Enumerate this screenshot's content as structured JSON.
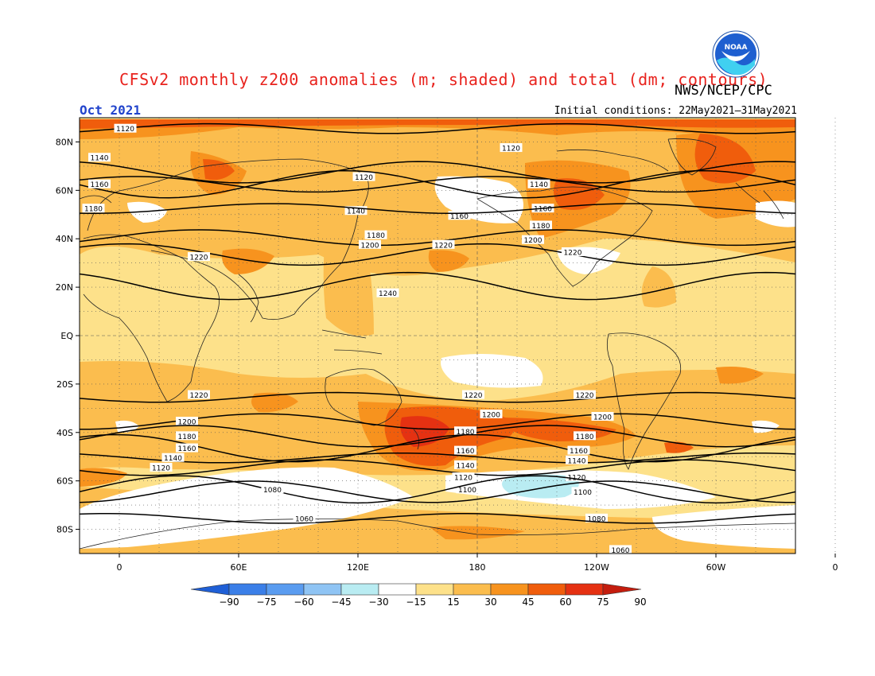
{
  "header": {
    "title": "CFSv2 monthly z200 anomalies (m; shaded) and total (dm; contours)",
    "organization": "NWS/NCEP/CPC",
    "valid_month": "Oct 2021",
    "initial_conditions": "Initial conditions: 22May2021–31May2021",
    "logo_text": "NOAA"
  },
  "map": {
    "lon_labels": [
      "0",
      "60E",
      "120E",
      "180",
      "120W",
      "60W",
      "0"
    ],
    "lat_labels": [
      "80N",
      "60N",
      "40N",
      "20N",
      "EQ",
      "20S",
      "40S",
      "60S",
      "80S"
    ],
    "contours": [
      {
        "value": "1120",
        "lat": 85.5,
        "labels": [
          [
            3,
            85.5
          ],
          [
            197,
            77.5
          ]
        ]
      },
      {
        "value": "1120",
        "lat": 62.5,
        "labels": [
          [
            123,
            65.5
          ]
        ]
      },
      {
        "value": "1140",
        "lat": 67.5,
        "labels": [
          [
            -10,
            73.5
          ],
          [
            119,
            51.5
          ],
          [
            211,
            62.5
          ]
        ]
      },
      {
        "value": "1160",
        "lat": 62.5,
        "labels": [
          [
            -10,
            62.5
          ],
          [
            171,
            49.5
          ],
          [
            213,
            52.5
          ]
        ]
      },
      {
        "value": "1180",
        "lat": 52.5,
        "labels": [
          [
            -13,
            52.5
          ],
          [
            129,
            41.5
          ],
          [
            212,
            45.5
          ]
        ]
      },
      {
        "value": "1200",
        "lat": 40.5,
        "labels": [
          [
            126,
            37.5
          ],
          [
            208,
            39.5
          ]
        ]
      },
      {
        "value": "1220",
        "lat": 33.5,
        "labels": [
          [
            40,
            32.5
          ],
          [
            163,
            37.5
          ],
          [
            228,
            34.5
          ]
        ]
      },
      {
        "value": "1240",
        "lat": 20.5,
        "labels": [
          [
            135,
            17.5
          ]
        ]
      },
      {
        "value": "1220",
        "lat": -25.5,
        "labels": [
          [
            40,
            -24.5
          ],
          [
            178,
            -24.5
          ],
          [
            234,
            -24.5
          ]
        ]
      },
      {
        "value": "1200",
        "lat": -35.5,
        "labels": [
          [
            34,
            -35.5
          ],
          [
            187,
            -32.5
          ],
          [
            243,
            -33.5
          ]
        ]
      },
      {
        "value": "1180",
        "lat": -41.5,
        "labels": [
          [
            34,
            -41.5
          ],
          [
            174,
            -39.5
          ],
          [
            234,
            -41.5
          ]
        ]
      },
      {
        "value": "1160",
        "lat": -46.5,
        "labels": [
          [
            34,
            -46.5
          ],
          [
            174,
            -47.5
          ],
          [
            231,
            -47.5
          ]
        ]
      },
      {
        "value": "1140",
        "lat": -50.5,
        "labels": [
          [
            27,
            -50.5
          ],
          [
            174,
            -53.5
          ],
          [
            230,
            -51.5
          ]
        ]
      },
      {
        "value": "1120",
        "lat": -54.5,
        "labels": [
          [
            21,
            -54.5
          ],
          [
            173,
            -58.5
          ],
          [
            230,
            -58.5
          ]
        ]
      },
      {
        "value": "1100",
        "lat": -64.5,
        "labels": [
          [
            175,
            -63.5
          ],
          [
            233,
            -64.5
          ]
        ]
      },
      {
        "value": "1080",
        "lat": -63.5,
        "labels": [
          [
            77,
            -63.5
          ],
          [
            240,
            -75.5
          ]
        ]
      },
      {
        "value": "1060",
        "lat": -75.5,
        "labels": [
          [
            93,
            -75.5
          ],
          [
            252,
            -88.5
          ]
        ]
      }
    ]
  },
  "colorbar": {
    "labels": [
      "−90",
      "−75",
      "−60",
      "−45",
      "−30",
      "−15",
      "15",
      "30",
      "45",
      "60",
      "75",
      "90"
    ],
    "colors": [
      "#1f5fd6",
      "#3b7fe8",
      "#5a9cf0",
      "#8fc4f4",
      "#b9ecf2",
      "#ffffff",
      "#fde18a",
      "#fbbd4e",
      "#f7931e",
      "#f05d0c",
      "#e53112",
      "#c41d0e"
    ]
  }
}
